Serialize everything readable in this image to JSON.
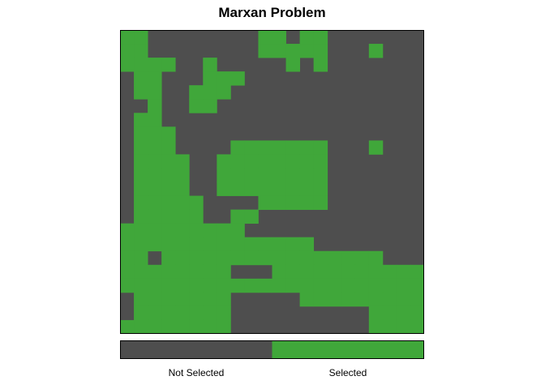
{
  "chart_data": {
    "type": "heatmap",
    "title": "Marxan Problem",
    "grid_size": [
      22,
      22
    ],
    "colors": {
      "not_selected": "#4e4e4e",
      "selected": "#40a73a",
      "border": "#000000"
    },
    "legend": {
      "position": "bottom",
      "entries": [
        {
          "label": "Not Selected",
          "value": 0
        },
        {
          "label": "Selected",
          "value": 1
        }
      ]
    },
    "selected_cells": [
      [
        0,
        0
      ],
      [
        0,
        1
      ],
      [
        0,
        10
      ],
      [
        0,
        11
      ],
      [
        0,
        13
      ],
      [
        0,
        14
      ],
      [
        1,
        0
      ],
      [
        1,
        1
      ],
      [
        1,
        10
      ],
      [
        1,
        11
      ],
      [
        1,
        12
      ],
      [
        1,
        13
      ],
      [
        1,
        14
      ],
      [
        1,
        18
      ],
      [
        2,
        0
      ],
      [
        2,
        1
      ],
      [
        2,
        2
      ],
      [
        2,
        3
      ],
      [
        2,
        6
      ],
      [
        2,
        12
      ],
      [
        2,
        14
      ],
      [
        3,
        1
      ],
      [
        3,
        2
      ],
      [
        3,
        6
      ],
      [
        3,
        7
      ],
      [
        3,
        8
      ],
      [
        4,
        1
      ],
      [
        4,
        2
      ],
      [
        4,
        5
      ],
      [
        4,
        6
      ],
      [
        4,
        7
      ],
      [
        5,
        2
      ],
      [
        5,
        5
      ],
      [
        5,
        6
      ],
      [
        6,
        1
      ],
      [
        6,
        2
      ],
      [
        7,
        1
      ],
      [
        7,
        2
      ],
      [
        7,
        3
      ],
      [
        8,
        1
      ],
      [
        8,
        2
      ],
      [
        8,
        3
      ],
      [
        8,
        8
      ],
      [
        8,
        9
      ],
      [
        8,
        10
      ],
      [
        8,
        11
      ],
      [
        8,
        12
      ],
      [
        8,
        13
      ],
      [
        8,
        14
      ],
      [
        8,
        18
      ],
      [
        9,
        1
      ],
      [
        9,
        2
      ],
      [
        9,
        3
      ],
      [
        9,
        4
      ],
      [
        9,
        7
      ],
      [
        9,
        8
      ],
      [
        9,
        9
      ],
      [
        9,
        10
      ],
      [
        9,
        11
      ],
      [
        9,
        12
      ],
      [
        9,
        13
      ],
      [
        9,
        14
      ],
      [
        10,
        1
      ],
      [
        10,
        2
      ],
      [
        10,
        3
      ],
      [
        10,
        4
      ],
      [
        10,
        7
      ],
      [
        10,
        8
      ],
      [
        10,
        9
      ],
      [
        10,
        10
      ],
      [
        10,
        11
      ],
      [
        10,
        12
      ],
      [
        10,
        13
      ],
      [
        10,
        14
      ],
      [
        11,
        1
      ],
      [
        11,
        2
      ],
      [
        11,
        3
      ],
      [
        11,
        4
      ],
      [
        11,
        7
      ],
      [
        11,
        8
      ],
      [
        11,
        9
      ],
      [
        11,
        10
      ],
      [
        11,
        11
      ],
      [
        11,
        12
      ],
      [
        11,
        13
      ],
      [
        11,
        14
      ],
      [
        12,
        1
      ],
      [
        12,
        2
      ],
      [
        12,
        3
      ],
      [
        12,
        4
      ],
      [
        12,
        5
      ],
      [
        12,
        10
      ],
      [
        12,
        11
      ],
      [
        12,
        12
      ],
      [
        12,
        13
      ],
      [
        12,
        14
      ],
      [
        13,
        1
      ],
      [
        13,
        2
      ],
      [
        13,
        3
      ],
      [
        13,
        4
      ],
      [
        13,
        5
      ],
      [
        13,
        8
      ],
      [
        13,
        9
      ],
      [
        14,
        0
      ],
      [
        14,
        1
      ],
      [
        14,
        2
      ],
      [
        14,
        3
      ],
      [
        14,
        4
      ],
      [
        14,
        5
      ],
      [
        14,
        6
      ],
      [
        14,
        7
      ],
      [
        14,
        8
      ],
      [
        15,
        0
      ],
      [
        15,
        1
      ],
      [
        15,
        2
      ],
      [
        15,
        3
      ],
      [
        15,
        4
      ],
      [
        15,
        5
      ],
      [
        15,
        6
      ],
      [
        15,
        7
      ],
      [
        15,
        8
      ],
      [
        15,
        9
      ],
      [
        15,
        10
      ],
      [
        15,
        11
      ],
      [
        15,
        12
      ],
      [
        15,
        13
      ],
      [
        16,
        0
      ],
      [
        16,
        1
      ],
      [
        16,
        3
      ],
      [
        16,
        4
      ],
      [
        16,
        5
      ],
      [
        16,
        6
      ],
      [
        16,
        7
      ],
      [
        16,
        8
      ],
      [
        16,
        9
      ],
      [
        16,
        10
      ],
      [
        16,
        11
      ],
      [
        16,
        12
      ],
      [
        16,
        13
      ],
      [
        16,
        14
      ],
      [
        16,
        15
      ],
      [
        16,
        16
      ],
      [
        16,
        17
      ],
      [
        16,
        18
      ],
      [
        17,
        0
      ],
      [
        17,
        1
      ],
      [
        17,
        2
      ],
      [
        17,
        3
      ],
      [
        17,
        4
      ],
      [
        17,
        5
      ],
      [
        17,
        6
      ],
      [
        17,
        7
      ],
      [
        17,
        11
      ],
      [
        17,
        12
      ],
      [
        17,
        13
      ],
      [
        17,
        14
      ],
      [
        17,
        15
      ],
      [
        17,
        16
      ],
      [
        17,
        17
      ],
      [
        17,
        18
      ],
      [
        17,
        19
      ],
      [
        17,
        20
      ],
      [
        17,
        21
      ],
      [
        18,
        0
      ],
      [
        18,
        1
      ],
      [
        18,
        2
      ],
      [
        18,
        3
      ],
      [
        18,
        4
      ],
      [
        18,
        5
      ],
      [
        18,
        6
      ],
      [
        18,
        7
      ],
      [
        18,
        8
      ],
      [
        18,
        9
      ],
      [
        18,
        10
      ],
      [
        18,
        11
      ],
      [
        18,
        12
      ],
      [
        18,
        13
      ],
      [
        18,
        14
      ],
      [
        18,
        15
      ],
      [
        18,
        16
      ],
      [
        18,
        17
      ],
      [
        18,
        18
      ],
      [
        18,
        19
      ],
      [
        18,
        20
      ],
      [
        18,
        21
      ],
      [
        19,
        1
      ],
      [
        19,
        2
      ],
      [
        19,
        3
      ],
      [
        19,
        4
      ],
      [
        19,
        5
      ],
      [
        19,
        6
      ],
      [
        19,
        7
      ],
      [
        19,
        13
      ],
      [
        19,
        14
      ],
      [
        19,
        15
      ],
      [
        19,
        16
      ],
      [
        19,
        17
      ],
      [
        19,
        18
      ],
      [
        19,
        19
      ],
      [
        19,
        20
      ],
      [
        19,
        21
      ],
      [
        20,
        1
      ],
      [
        20,
        2
      ],
      [
        20,
        3
      ],
      [
        20,
        4
      ],
      [
        20,
        5
      ],
      [
        20,
        6
      ],
      [
        20,
        7
      ],
      [
        20,
        18
      ],
      [
        20,
        19
      ],
      [
        20,
        20
      ],
      [
        20,
        21
      ],
      [
        21,
        0
      ],
      [
        21,
        1
      ],
      [
        21,
        2
      ],
      [
        21,
        3
      ],
      [
        21,
        4
      ],
      [
        21,
        5
      ],
      [
        21,
        6
      ],
      [
        21,
        7
      ],
      [
        21,
        18
      ],
      [
        21,
        19
      ],
      [
        21,
        20
      ],
      [
        21,
        21
      ]
    ]
  }
}
